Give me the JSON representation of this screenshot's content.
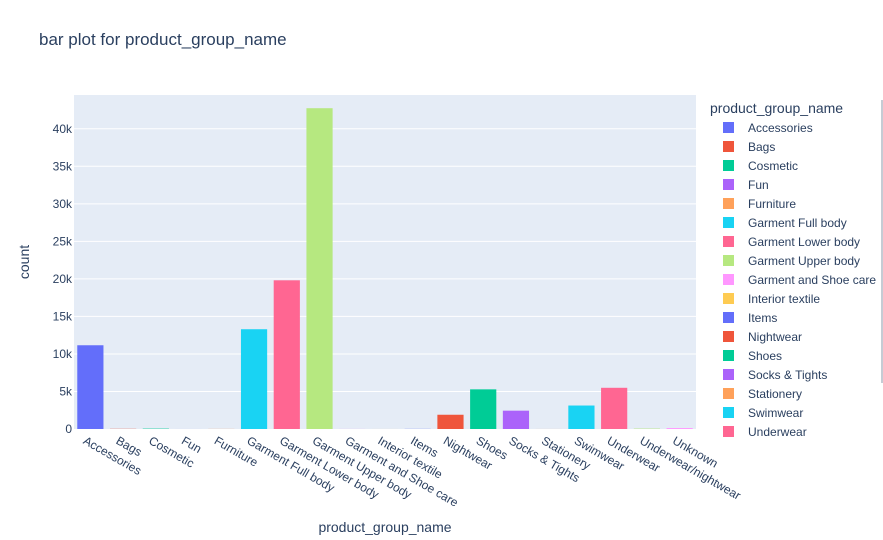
{
  "chart_data": {
    "type": "bar",
    "title": "bar plot for product_group_name",
    "xlabel": "product_group_name",
    "ylabel": "count",
    "ylim": [
      0,
      44500
    ],
    "yticks": [
      0,
      5000,
      10000,
      15000,
      20000,
      25000,
      30000,
      35000,
      40000
    ],
    "ytick_labels": [
      "0",
      "5k",
      "10k",
      "15k",
      "20k",
      "25k",
      "30k",
      "35k",
      "40k"
    ],
    "grid": true,
    "legend_title": "product_group_name",
    "legend_position": "right",
    "categories": [
      "Accessories",
      "Bags",
      "Cosmetic",
      "Fun",
      "Furniture",
      "Garment Full body",
      "Garment Lower body",
      "Garment Upper body",
      "Garment and Shoe care",
      "Interior textile",
      "Items",
      "Nightwear",
      "Shoes",
      "Socks & Tights",
      "Stationery",
      "Swimwear",
      "Underwear",
      "Underwear/nightwear",
      "Unknown"
    ],
    "values": [
      11158,
      25,
      49,
      2,
      13,
      13292,
      19812,
      42741,
      9,
      3,
      17,
      1899,
      5283,
      2442,
      5,
      3127,
      5490,
      54,
      121
    ],
    "colors": [
      "#636efa",
      "#EF553B",
      "#00cc96",
      "#ab63fa",
      "#FFA15A",
      "#19d3f3",
      "#FF6692",
      "#B6E880",
      "#FF97FF",
      "#FECB52",
      "#636efa",
      "#EF553B",
      "#00cc96",
      "#ab63fa",
      "#FFA15A",
      "#19d3f3",
      "#FF6692",
      "#B6E880",
      "#FF97FF"
    ],
    "legend_visible_count": 17,
    "legend_partial_label": "Underwear"
  }
}
